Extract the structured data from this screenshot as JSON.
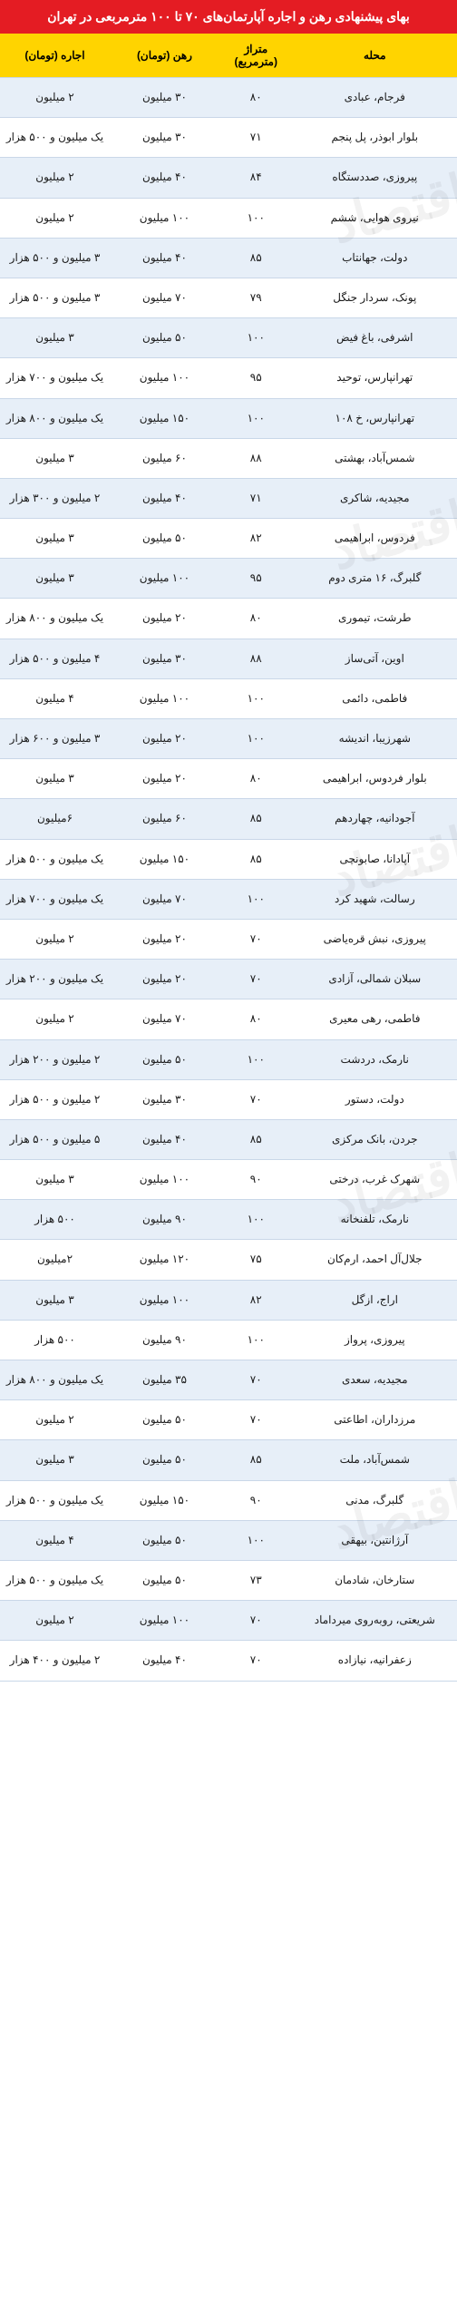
{
  "title": "بهای پیشنهادی رهن و اجاره آپارتمان‌های ۷۰ تا ۱۰۰ مترمربعی در تهران",
  "watermark_text": "دنیای اقتصاد",
  "table": {
    "type": "table",
    "columns": [
      {
        "key": "location",
        "label": "محله",
        "width_pct": 36,
        "align": "center"
      },
      {
        "key": "area",
        "label": "متراژ (مترمربع)",
        "width_pct": 16,
        "align": "center"
      },
      {
        "key": "deposit",
        "label": "رهن (تومان)",
        "width_pct": 24,
        "align": "center"
      },
      {
        "key": "rent",
        "label": "اجاره (تومان)",
        "width_pct": 24,
        "align": "center"
      }
    ],
    "rows": [
      {
        "location": "فرجام، عبادی",
        "area": "۸۰",
        "deposit": "۳۰ میلیون",
        "rent": "۲ میلیون"
      },
      {
        "location": "بلوار ابوذر، پل پنجم",
        "area": "۷۱",
        "deposit": "۳۰ میلیون",
        "rent": "یک میلیون و ۵۰۰ هزار"
      },
      {
        "location": "پیروزی، صددستگاه",
        "area": "۸۴",
        "deposit": "۴۰ میلیون",
        "rent": "۲ میلیون"
      },
      {
        "location": "نیروی هوایی، ششم",
        "area": "۱۰۰",
        "deposit": "۱۰۰ میلیون",
        "rent": "۲ میلیون"
      },
      {
        "location": "دولت، جهانتاب",
        "area": "۸۵",
        "deposit": "۴۰ میلیون",
        "rent": "۳ میلیون و ۵۰۰ هزار"
      },
      {
        "location": "پونک، سردار جنگل",
        "area": "۷۹",
        "deposit": "۷۰ میلیون",
        "rent": "۳ میلیون و ۵۰۰ هزار"
      },
      {
        "location": "اشرفی، باغ فیض",
        "area": "۱۰۰",
        "deposit": "۵۰ میلیون",
        "rent": "۳ میلیون"
      },
      {
        "location": "تهرانپارس، توحید",
        "area": "۹۵",
        "deposit": "۱۰۰ میلیون",
        "rent": "یک میلیون و ۷۰۰ هزار"
      },
      {
        "location": "تهرانپارس، خ ۱۰۸",
        "area": "۱۰۰",
        "deposit": "۱۵۰ میلیون",
        "rent": "یک میلیون و ۸۰۰ هزار"
      },
      {
        "location": "شمس‌آباد، بهشتی",
        "area": "۸۸",
        "deposit": "۶۰ میلیون",
        "rent": "۳ میلیون"
      },
      {
        "location": "مجیدیه، شاکری",
        "area": "۷۱",
        "deposit": "۴۰ میلیون",
        "rent": "۲ میلیون و ۳۰۰ هزار"
      },
      {
        "location": "فردوس، ابراهیمی",
        "area": "۸۲",
        "deposit": "۵۰ میلیون",
        "rent": "۳ میلیون"
      },
      {
        "location": "گلبرگ، ۱۶ متری دوم",
        "area": "۹۵",
        "deposit": "۱۰۰ میلیون",
        "rent": "۳ میلیون"
      },
      {
        "location": "طرشت، تیموری",
        "area": "۸۰",
        "deposit": "۲۰ میلیون",
        "rent": "یک میلیون و ۸۰۰ هزار"
      },
      {
        "location": "اوین، آتی‌ساز",
        "area": "۸۸",
        "deposit": "۳۰ میلیون",
        "rent": "۴ میلیون و ۵۰۰ هزار"
      },
      {
        "location": "فاطمی، دائمی",
        "area": "۱۰۰",
        "deposit": "۱۰۰ میلیون",
        "rent": "۴ میلیون"
      },
      {
        "location": "شهرزیبا، اندیشه",
        "area": "۱۰۰",
        "deposit": "۲۰ میلیون",
        "rent": "۳ میلیون و ۶۰۰ هزار"
      },
      {
        "location": "بلوار فردوس، ابراهیمی",
        "area": "۸۰",
        "deposit": "۲۰ میلیون",
        "rent": "۳ میلیون"
      },
      {
        "location": "آجودانیه، چهاردهم",
        "area": "۸۵",
        "deposit": "۶۰ میلیون",
        "rent": "۶میلیون"
      },
      {
        "location": "آپادانا، صابونچی",
        "area": "۸۵",
        "deposit": "۱۵۰ میلیون",
        "rent": "یک میلیون و ۵۰۰ هزار"
      },
      {
        "location": "رسالت، شهید کرد",
        "area": "۱۰۰",
        "deposit": "۷۰ میلیون",
        "rent": "یک میلیون و ۷۰۰ هزار"
      },
      {
        "location": "پیروزی، نبش قره‌یاضی",
        "area": "۷۰",
        "deposit": "۲۰ میلیون",
        "rent": "۲ میلیون"
      },
      {
        "location": "سبلان شمالی، آزادی",
        "area": "۷۰",
        "deposit": "۲۰ میلیون",
        "rent": "یک میلیون و ۲۰۰ هزار"
      },
      {
        "location": "فاطمی، رهی معیری",
        "area": "۸۰",
        "deposit": "۷۰ میلیون",
        "rent": "۲ میلیون"
      },
      {
        "location": "نارمک، دردشت",
        "area": "۱۰۰",
        "deposit": "۵۰ میلیون",
        "rent": "۲ میلیون و ۲۰۰ هزار"
      },
      {
        "location": "دولت، دستور",
        "area": "۷۰",
        "deposit": "۳۰ میلیون",
        "rent": "۲ میلیون و ۵۰۰ هزار"
      },
      {
        "location": "جردن، بانک مرکزی",
        "area": "۸۵",
        "deposit": "۴۰ میلیون",
        "rent": "۵ میلیون و ۵۰۰ هزار"
      },
      {
        "location": "شهرک غرب، درختی",
        "area": "۹۰",
        "deposit": "۱۰۰ میلیون",
        "rent": "۳ میلیون"
      },
      {
        "location": "نارمک، تلفنخانه",
        "area": "۱۰۰",
        "deposit": "۹۰ میلیون",
        "rent": "۵۰۰ هزار"
      },
      {
        "location": "جلال‌آل احمد، ارم‌کان",
        "area": "۷۵",
        "deposit": "۱۲۰ میلیون",
        "rent": "۲میلیون"
      },
      {
        "location": "اراج، ازگل",
        "area": "۸۲",
        "deposit": "۱۰۰ میلیون",
        "rent": "۳ میلیون"
      },
      {
        "location": "پیروزی، پرواز",
        "area": "۱۰۰",
        "deposit": "۹۰ میلیون",
        "rent": "۵۰۰ هزار"
      },
      {
        "location": "مجیدیه، سعدی",
        "area": "۷۰",
        "deposit": "۳۵ میلیون",
        "rent": "یک میلیون و ۸۰۰ هزار"
      },
      {
        "location": "مرزداران، اطاعتی",
        "area": "۷۰",
        "deposit": "۵۰ میلیون",
        "rent": "۲ میلیون"
      },
      {
        "location": "شمس‌آباد، ملت",
        "area": "۸۵",
        "deposit": "۵۰ میلیون",
        "rent": "۳ میلیون"
      },
      {
        "location": "گلبرگ، مدنی",
        "area": "۹۰",
        "deposit": "۱۵۰ میلیون",
        "rent": "یک میلیون و ۵۰۰ هزار"
      },
      {
        "location": "آرژانتین، بیهقی",
        "area": "۱۰۰",
        "deposit": "۵۰ میلیون",
        "rent": "۴ میلیون"
      },
      {
        "location": "ستارخان، شادمان",
        "area": "۷۳",
        "deposit": "۵۰ میلیون",
        "rent": "یک میلیون و ۵۰۰ هزار"
      },
      {
        "location": "شریعتی، روبه‌روی میرداماد",
        "area": "۷۰",
        "deposit": "۱۰۰ میلیون",
        "rent": "۲ میلیون"
      },
      {
        "location": "زعفرانیه، نیازاده",
        "area": "۷۰",
        "deposit": "۴۰ میلیون",
        "rent": "۲ میلیون و ۴۰۰ هزار"
      }
    ],
    "colors": {
      "title_bg": "#e41c23",
      "title_fg": "#ffffff",
      "header_bg": "#ffd400",
      "header_fg": "#000000",
      "row_odd_bg": "#e7eff8",
      "row_even_bg": "#ffffff",
      "border": "#c9d7e8",
      "text": "#1a1a1a",
      "watermark": "rgba(0,0,0,0.05)"
    },
    "font_sizes": {
      "title": 14,
      "header": 12,
      "cell": 12,
      "watermark": 56
    }
  }
}
